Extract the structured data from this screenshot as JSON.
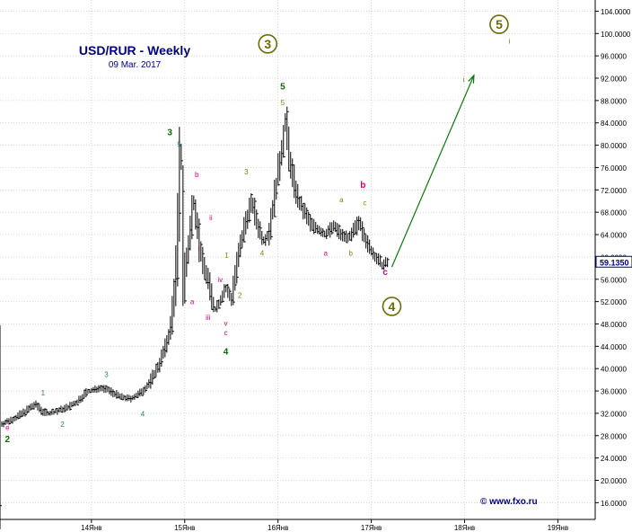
{
  "title": "USD/RUR - Weekly",
  "date": "09 Mar. 2017",
  "watermark": "© www.fxo.ru",
  "current_price_label": "59.1350",
  "colors": {
    "title": "#000080",
    "price_bars": "#000000",
    "grid": "#bdbdbd",
    "forecast_arrow": "#0a7a0a",
    "wave_primary": "#6b6b00",
    "wave_dark_green": "#0a6a0a",
    "wave_magenta": "#d6007a",
    "wave_teal": "#2a7a8a",
    "wave_olive": "#8a7a10",
    "price_box": "#000080"
  },
  "chart_data": {
    "type": "ohlc",
    "title": "USD/RUR - Weekly",
    "subtitle": "09 Mar. 2017",
    "x_tick_labels": [
      "14Янв",
      "15Янв",
      "16Янв",
      "17Янв",
      "18Янв",
      "19Янв"
    ],
    "x_ticks_year": [
      2014,
      2015,
      2016,
      2017,
      2018,
      2019
    ],
    "xlim": [
      2013.02,
      2019.4
    ],
    "ylim": [
      13,
      106
    ],
    "y_ticks": [
      16,
      20,
      24,
      28,
      32,
      36,
      40,
      44,
      48,
      52,
      56,
      60,
      64,
      68,
      72,
      76,
      80,
      84,
      88,
      92,
      96,
      100,
      104
    ],
    "y_tick_labels": [
      "16.0000",
      "20.0000",
      "24.0000",
      "28.0000",
      "32.0000",
      "36.0000",
      "40.0000",
      "44.0000",
      "48.0000",
      "52.0000",
      "56.0000",
      "60.0000",
      "64.0000",
      "68.0000",
      "72.0000",
      "76.0000",
      "80.0000",
      "84.0000",
      "88.0000",
      "92.0000",
      "96.0000",
      "100.0000",
      "104.0000"
    ],
    "grid": true,
    "last_price": 59.135,
    "price_path": [
      [
        2013.02,
        30.0
      ],
      [
        2013.1,
        30.5
      ],
      [
        2013.2,
        31.3
      ],
      [
        2013.3,
        32.4
      ],
      [
        2013.4,
        33.6
      ],
      [
        2013.48,
        32.3
      ],
      [
        2013.55,
        32.0
      ],
      [
        2013.65,
        32.5
      ],
      [
        2013.75,
        33.1
      ],
      [
        2013.85,
        34.0
      ],
      [
        2013.95,
        35.8
      ],
      [
        2014.1,
        36.6
      ],
      [
        2014.2,
        36.0
      ],
      [
        2014.3,
        35.0
      ],
      [
        2014.42,
        34.6
      ],
      [
        2014.52,
        35.5
      ],
      [
        2014.62,
        37.3
      ],
      [
        2014.72,
        40.5
      ],
      [
        2014.8,
        44.0
      ],
      [
        2014.86,
        48.0
      ],
      [
        2014.92,
        60.0
      ],
      [
        2014.96,
        79.0
      ],
      [
        2015.0,
        56.0
      ],
      [
        2015.06,
        64.0
      ],
      [
        2015.1,
        70.5
      ],
      [
        2015.18,
        60.0
      ],
      [
        2015.25,
        56.0
      ],
      [
        2015.32,
        50.5
      ],
      [
        2015.38,
        52.0
      ],
      [
        2015.44,
        54.5
      ],
      [
        2015.5,
        52.5
      ],
      [
        2015.58,
        60.0
      ],
      [
        2015.66,
        66.5
      ],
      [
        2015.72,
        70.0
      ],
      [
        2015.78,
        66.0
      ],
      [
        2015.84,
        63.0
      ],
      [
        2015.9,
        64.0
      ],
      [
        2015.96,
        70.0
      ],
      [
        2016.05,
        80.0
      ],
      [
        2016.08,
        84.5
      ],
      [
        2016.14,
        76.0
      ],
      [
        2016.22,
        70.0
      ],
      [
        2016.35,
        66.0
      ],
      [
        2016.5,
        64.0
      ],
      [
        2016.6,
        65.5
      ],
      [
        2016.68,
        64.0
      ],
      [
        2016.78,
        63.5
      ],
      [
        2016.88,
        66.5
      ],
      [
        2016.95,
        62.5
      ],
      [
        2017.04,
        60.0
      ],
      [
        2017.12,
        58.5
      ],
      [
        2017.19,
        59.135
      ]
    ],
    "forecast_arrow": {
      "from": [
        2017.22,
        58.2
      ],
      "to": [
        2018.1,
        92.5
      ]
    },
    "wave_labels": [
      {
        "text": "3",
        "x": 2015.89,
        "y": 97.5,
        "color": "wave_primary",
        "circled": true
      },
      {
        "text": "5",
        "x": 2018.37,
        "y": 101.0,
        "color": "wave_primary",
        "circled": true
      },
      {
        "text": "4",
        "x": 2017.22,
        "y": 50.5,
        "color": "wave_primary",
        "circled": true
      },
      {
        "text": "5",
        "x": 2016.05,
        "y": 90.0,
        "color": "wave_dark_green",
        "bold": true
      },
      {
        "text": "5",
        "x": 2016.05,
        "y": 87.2,
        "color": "wave_olive"
      },
      {
        "text": "3",
        "x": 2014.84,
        "y": 81.8,
        "color": "wave_dark_green",
        "bold": true
      },
      {
        "text": "5",
        "x": 2014.94,
        "y": 79.7,
        "color": "wave_teal"
      },
      {
        "text": "4",
        "x": 2015.44,
        "y": 42.5,
        "color": "wave_dark_green",
        "bold": true
      },
      {
        "text": "2",
        "x": 2013.1,
        "y": 26.8,
        "color": "wave_dark_green",
        "bold": true
      },
      {
        "text": "e",
        "x": 2013.1,
        "y": 29.0,
        "color": "wave_magenta"
      },
      {
        "text": "1",
        "x": 2013.48,
        "y": 35.2,
        "color": "wave_teal"
      },
      {
        "text": "2",
        "x": 2013.69,
        "y": 29.6,
        "color": "wave_teal"
      },
      {
        "text": "3",
        "x": 2014.16,
        "y": 38.5,
        "color": "wave_teal"
      },
      {
        "text": "4",
        "x": 2014.55,
        "y": 31.4,
        "color": "wave_teal"
      },
      {
        "text": "b",
        "x": 2015.13,
        "y": 74.3,
        "color": "wave_magenta"
      },
      {
        "text": "ii",
        "x": 2015.28,
        "y": 66.6,
        "color": "wave_magenta"
      },
      {
        "text": "i",
        "x": 2015.15,
        "y": 61.0,
        "color": "wave_magenta"
      },
      {
        "text": "a",
        "x": 2015.08,
        "y": 51.5,
        "color": "wave_magenta"
      },
      {
        "text": "iii",
        "x": 2015.25,
        "y": 48.7,
        "color": "wave_magenta"
      },
      {
        "text": "iv",
        "x": 2015.38,
        "y": 55.5,
        "color": "wave_magenta"
      },
      {
        "text": "v",
        "x": 2015.44,
        "y": 47.7,
        "color": "wave_magenta"
      },
      {
        "text": "c",
        "x": 2015.44,
        "y": 46.0,
        "color": "wave_magenta"
      },
      {
        "text": "1",
        "x": 2015.45,
        "y": 59.8,
        "color": "wave_olive"
      },
      {
        "text": "2",
        "x": 2015.59,
        "y": 52.7,
        "color": "wave_olive"
      },
      {
        "text": "3",
        "x": 2015.66,
        "y": 74.8,
        "color": "wave_olive"
      },
      {
        "text": "4",
        "x": 2015.83,
        "y": 60.2,
        "color": "wave_olive"
      },
      {
        "text": "a",
        "x": 2016.51,
        "y": 60.2,
        "color": "wave_magenta"
      },
      {
        "text": "a",
        "x": 2016.68,
        "y": 69.8,
        "color": "wave_olive"
      },
      {
        "text": "b",
        "x": 2016.78,
        "y": 60.2,
        "color": "wave_olive"
      },
      {
        "text": "c",
        "x": 2016.93,
        "y": 69.2,
        "color": "wave_olive"
      },
      {
        "text": "b",
        "x": 2016.91,
        "y": 72.4,
        "color": "wave_magenta",
        "bold": true
      },
      {
        "text": "c",
        "x": 2017.15,
        "y": 56.8,
        "color": "wave_magenta",
        "bold": true
      },
      {
        "text": "i",
        "x": 2018.48,
        "y": 98.2,
        "color": "wave_olive"
      },
      {
        "text": "i",
        "x": 2017.99,
        "y": 91.3,
        "color": "wave_olive"
      }
    ]
  }
}
